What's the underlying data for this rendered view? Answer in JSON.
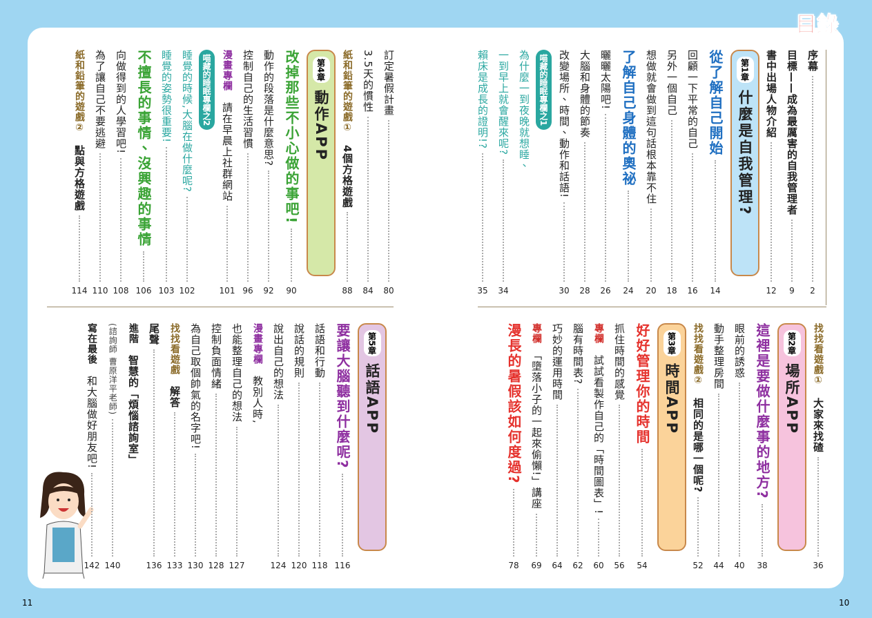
{
  "title": "目錄",
  "page_numbers": {
    "left": 11,
    "right": 10
  },
  "sections": [
    {
      "entries": [
        {
          "lines": [
            "序幕"
          ],
          "page": 2,
          "bold": true
        },
        {
          "lines": [
            "目標——成為最厲害的自我管理者"
          ],
          "page": 9,
          "bold": true
        },
        {
          "lines": [
            "書中出場人物介紹"
          ],
          "page": 12,
          "bold": true
        },
        {
          "chapter": "第1章",
          "title": "什麼是自我管理?",
          "color": "#bde3f7"
        },
        {
          "lines": [
            "從了解自己開始"
          ],
          "page": 14,
          "heading": true,
          "color": "#1f6fc1"
        },
        {
          "lines": [
            "回顧一下平常的自己"
          ],
          "page": 16
        },
        {
          "lines": [
            "另外一個自己"
          ],
          "page": 18
        },
        {
          "lines": [
            "想做就會做到這句話根本靠不住"
          ],
          "page": 20
        },
        {
          "lines": [
            "了解自己身體的奧祕"
          ],
          "page": 24,
          "heading": true,
          "color": "#1f6fc1"
        },
        {
          "lines": [
            "曬曬太陽吧!"
          ],
          "page": 26
        },
        {
          "lines": [
            "大腦和身體的節奏"
          ],
          "page": 28
        },
        {
          "lines": [
            "改變場所、時間、動作和話語!"
          ],
          "page": 30
        },
        {
          "tag": "喵藏的睡眠專欄之1",
          "color": "#2aa7a0"
        },
        {
          "lines": [
            "為什麼一到夜晚就想睡、",
            "一到早上就會醒來呢?"
          ],
          "page": 34,
          "color": "#2aa7a0"
        },
        {
          "lines": [
            "賴床是成長的證明!?"
          ],
          "page": 35,
          "color": "#2aa7a0"
        }
      ]
    },
    {
      "entries": [
        {
          "prefix": "找找看遊戲①",
          "prefix_color": "#8a6a28",
          "lines": [
            "大家來找碴"
          ],
          "page": 36,
          "bold": true
        },
        {
          "chapter": "第2章",
          "title": "場所APP",
          "color": "#f6c3dd"
        },
        {
          "lines": [
            "這裡是要做什麼事的地方?"
          ],
          "page": 38,
          "heading": true,
          "color": "#8e2fa0"
        },
        {
          "lines": [
            "眼前的誘惑"
          ],
          "page": 40
        },
        {
          "lines": [
            "動手整理房間"
          ],
          "page": 44
        },
        {
          "prefix": "找找看遊戲②",
          "prefix_color": "#8a6a28",
          "lines": [
            "相同的是哪一個呢?"
          ],
          "page": 52,
          "bold": true
        },
        {
          "chapter": "第3章",
          "title": "時間APP",
          "color": "#fbd39a"
        },
        {
          "lines": [
            "好好管理你的時間"
          ],
          "page": 54,
          "heading": true,
          "color": "#e5322d"
        },
        {
          "lines": [
            "抓住時間的感覺"
          ],
          "page": 56
        },
        {
          "prefix": "專欄",
          "prefix_color": "#d2302c",
          "lines": [
            "試試看製作自己的「時間圖表」!"
          ],
          "page": 60
        },
        {
          "lines": [
            "腦有時間表?"
          ],
          "page": 62
        },
        {
          "lines": [
            "巧妙的運用時間"
          ],
          "page": 64
        },
        {
          "prefix": "專欄",
          "prefix_color": "#d2302c",
          "lines": [
            "「墮落小子的一起來偷懶!」講座"
          ],
          "page": 69
        },
        {
          "lines": [
            "漫長的暑假該如何度過?"
          ],
          "page": 78,
          "heading": true,
          "color": "#e5322d"
        }
      ]
    },
    {
      "entries": [
        {
          "lines": [
            "訂定暑假計畫"
          ],
          "page": 80
        },
        {
          "lines": [
            "3.5天的慣性"
          ],
          "page": 84
        },
        {
          "prefix": "紙和鉛筆的遊戲①",
          "prefix_color": "#8a6a28",
          "lines": [
            "4個方格遊戲"
          ],
          "page": 88,
          "bold": true
        },
        {
          "chapter": "第4章",
          "title": "動作APP",
          "color": "#d5e8a8"
        },
        {
          "lines": [
            "改掉那些不小心做的事吧!"
          ],
          "page": 90,
          "heading": true,
          "color": "#3aa335"
        },
        {
          "lines": [
            "動作的段落是什麼意思?"
          ],
          "page": 92
        },
        {
          "lines": [
            "控制自己的生活習慣"
          ],
          "page": 96
        },
        {
          "prefix": "漫畫專欄",
          "prefix_color": "#8e2fa0",
          "lines": [
            "請在早晨上社群網站"
          ],
          "page": 101
        },
        {
          "tag": "喵藏的睡眠專欄之2",
          "color": "#2aa7a0"
        },
        {
          "lines": [
            "睡覺的時候,大腦在做什麼呢?"
          ],
          "page": 102,
          "color": "#2aa7a0"
        },
        {
          "lines": [
            "睡覺的姿勢很重要!"
          ],
          "page": 103,
          "color": "#2aa7a0"
        },
        {
          "lines": [
            "不擅長的事情、沒興趣的事情"
          ],
          "page": 106,
          "heading": true,
          "color": "#3aa335"
        },
        {
          "lines": [
            "向做得到的人學習吧!"
          ],
          "page": 108
        },
        {
          "lines": [
            "為了讓自己不要逃避"
          ],
          "page": 110
        },
        {
          "prefix": "紙和鉛筆的遊戲②",
          "prefix_color": "#8a6a28",
          "lines": [
            "點與方格遊戲"
          ],
          "page": 114,
          "bold": true
        }
      ]
    },
    {
      "entries": [
        {
          "chapter": "第5章",
          "title": "話語APP",
          "color": "#e3c6e3"
        },
        {
          "lines": [
            "要讓大腦聽到什麼呢?"
          ],
          "page": 116,
          "heading": true,
          "color": "#8e2fa0"
        },
        {
          "lines": [
            "話語和行動"
          ],
          "page": 118
        },
        {
          "lines": [
            "說話的規則"
          ],
          "page": 120
        },
        {
          "lines": [
            "說出自己的想法"
          ],
          "page": 124
        },
        {
          "prefix": "漫畫專欄",
          "prefix_color": "#8e2fa0",
          "lines": [
            "教別人時,",
            "也能整理自己的想法"
          ],
          "page": 127
        },
        {
          "lines": [
            "控制負面情緒"
          ],
          "page": 128
        },
        {
          "lines": [
            "為自己取個帥氣的名字吧!"
          ],
          "page": 130
        },
        {
          "prefix": "找找看遊戲",
          "prefix_color": "#8a6a28",
          "lines": [
            "解答"
          ],
          "page": 133,
          "bold": true
        },
        {
          "lines": [
            "尾聲"
          ],
          "page": 136,
          "bold": true
        },
        {
          "prefix": "進階",
          "prefix_color": "#222222",
          "lines": [
            "智慧的「煩惱諮詢室」"
          ],
          "note": "(諮詢師 曹原洋平老師)",
          "page": 140,
          "bold": true
        },
        {
          "prefix": "寫在最後",
          "prefix_color": "#222222",
          "lines": [
            "和大腦做好朋友吧!"
          ],
          "page": 142
        }
      ]
    }
  ]
}
